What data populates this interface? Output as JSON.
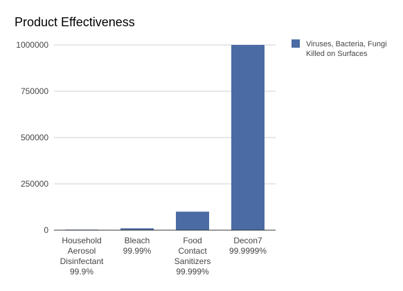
{
  "chart_data": {
    "type": "bar",
    "title": "Product Effectiveness",
    "xlabel": "",
    "ylabel": "",
    "categories": [
      [
        "Household",
        "Aerosol",
        "Disinfectant",
        "99.9%"
      ],
      [
        "Bleach",
        "99.99%"
      ],
      [
        "Food",
        "Contact",
        "Sanitizers",
        "99.999%"
      ],
      [
        "Decon7",
        "99.9999%"
      ]
    ],
    "series": [
      {
        "name": [
          "Viruses, Bacteria, Fungi",
          "Killed on Surfaces"
        ],
        "color": "#4a6ba3",
        "values": [
          1000,
          10000,
          100000,
          1000000
        ]
      }
    ],
    "ylim": [
      0,
      1000000
    ],
    "yticks": [
      "0",
      "250000",
      "500000",
      "750000",
      "1000000"
    ],
    "ytick_values": [
      0,
      250000,
      500000,
      750000,
      1000000
    ],
    "grid": true,
    "legend": "right"
  }
}
